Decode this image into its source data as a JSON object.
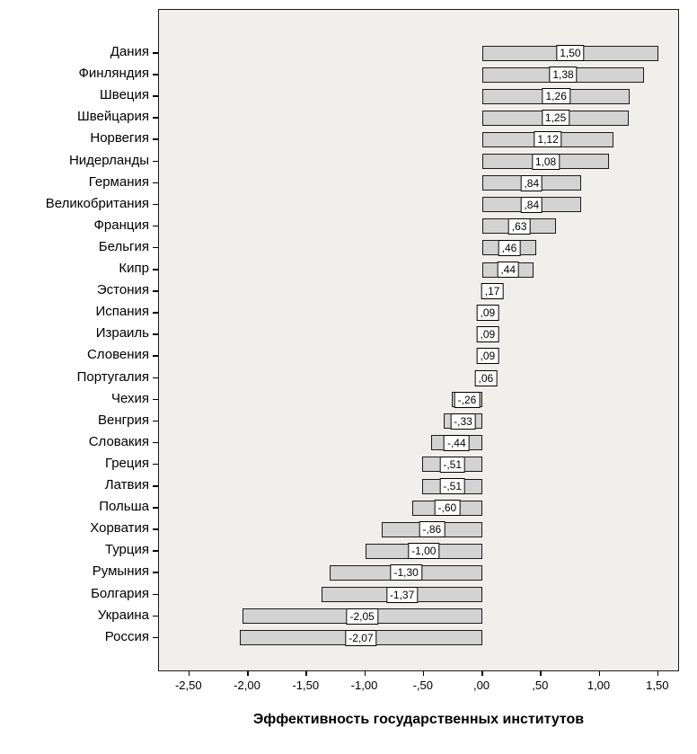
{
  "chart_data": {
    "type": "bar",
    "orientation": "horizontal",
    "title": "",
    "xlabel": "Эффективность государственных институтов",
    "ylabel": "",
    "xlim": [
      -2.75,
      1.68
    ],
    "grid": false,
    "legend": "none",
    "plot_bg": "#f0efeb",
    "bar_color": "#d3d3d3",
    "bar_border_color": "#1a1a1a",
    "x_ticks": [
      {
        "value": -2.5,
        "label": "-2,50"
      },
      {
        "value": -2.0,
        "label": "-2,00"
      },
      {
        "value": -1.5,
        "label": "-1,50"
      },
      {
        "value": -1.0,
        "label": "-1,00"
      },
      {
        "value": -0.5,
        "label": "-,50"
      },
      {
        "value": 0.0,
        "label": ",00"
      },
      {
        "value": 0.5,
        "label": ",50"
      },
      {
        "value": 1.0,
        "label": "1,00"
      },
      {
        "value": 1.5,
        "label": "1,50"
      }
    ],
    "categories": [
      "Дания",
      "Финляндия",
      "Швеция",
      "Швейцария",
      "Норвегия",
      "Нидерланды",
      "Германия",
      "Великобритания",
      "Франция",
      "Бельгия",
      "Кипр",
      "Эстония",
      "Испания",
      "Израиль",
      "Словения",
      "Португалия",
      "Чехия",
      "Венгрия",
      "Словакия",
      "Греция",
      "Латвия",
      "Польша",
      "Хорватия",
      "Турция",
      "Румыния",
      "Болгария",
      "Украина",
      "Россия"
    ],
    "values": [
      1.5,
      1.38,
      1.26,
      1.25,
      1.12,
      1.08,
      0.84,
      0.84,
      0.63,
      0.46,
      0.44,
      0.17,
      0.09,
      0.09,
      0.09,
      0.06,
      -0.26,
      -0.33,
      -0.44,
      -0.51,
      -0.51,
      -0.6,
      -0.86,
      -1.0,
      -1.3,
      -1.37,
      -2.05,
      -2.07
    ],
    "value_labels": [
      "1,50",
      "1,38",
      "1,26",
      "1,25",
      "1,12",
      "1,08",
      ",84",
      ",84",
      ",63",
      ",46",
      ",44",
      ",17",
      ",09",
      ",09",
      ",09",
      ",06",
      "-,26",
      "-,33",
      "-,44",
      "-,51",
      "-,51",
      "-,60",
      "-,86",
      "-1,00",
      "-1,30",
      "-1,37",
      "-2,05",
      "-2,07"
    ]
  }
}
